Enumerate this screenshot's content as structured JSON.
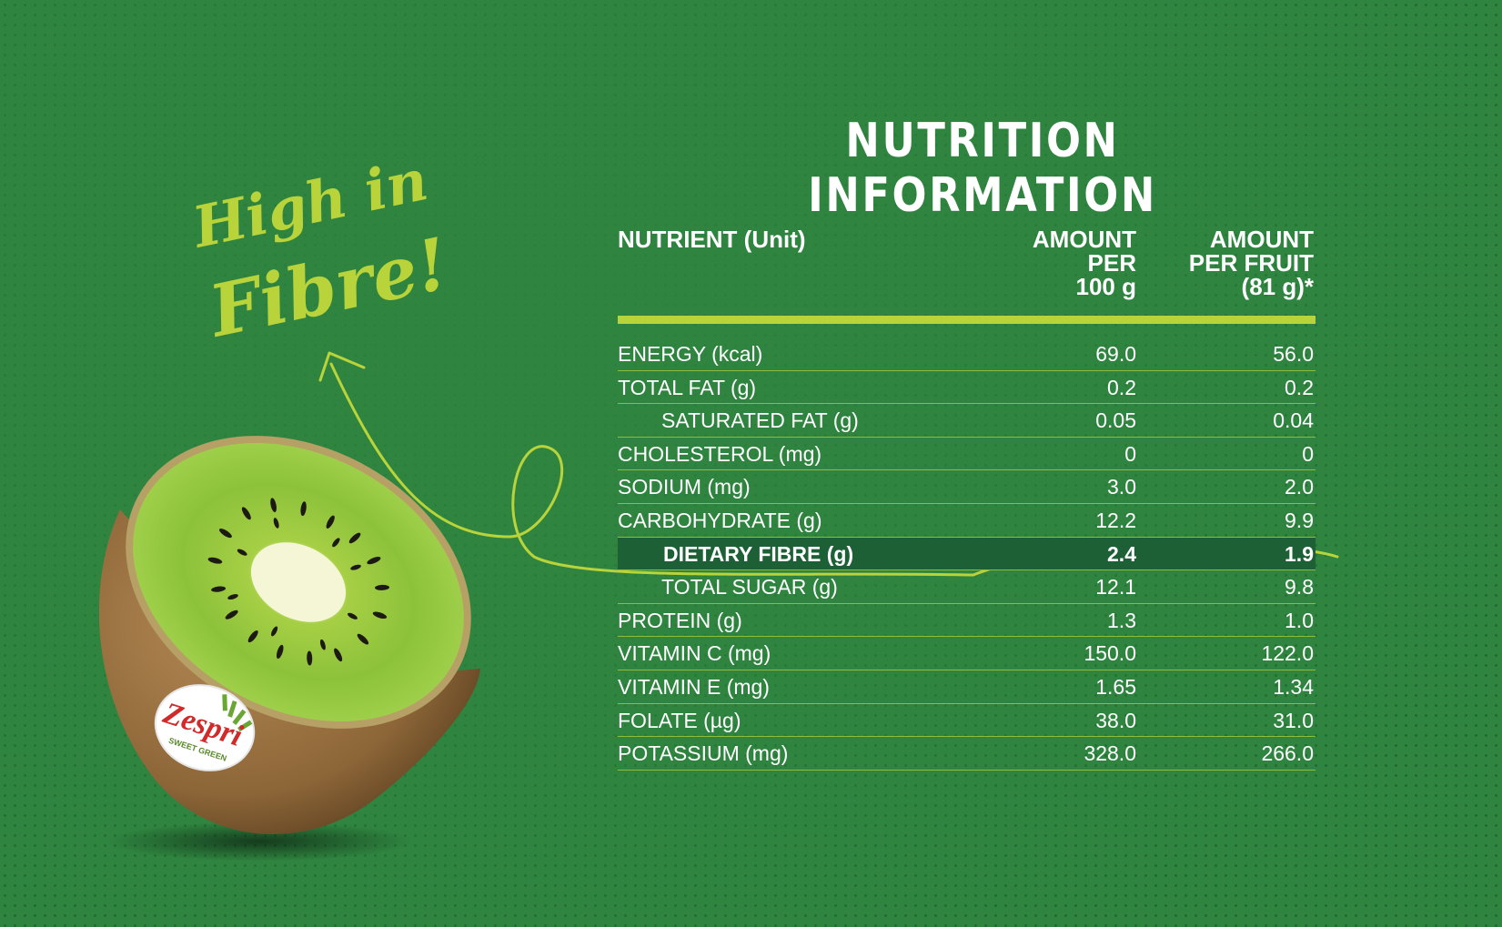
{
  "title": "NUTRITION INFORMATION",
  "callout": {
    "line1": "High in",
    "line2": "Fibre!"
  },
  "logo": {
    "brand": "Zespri",
    "sub": "SWEET GREEN"
  },
  "colors": {
    "background": "#2f8540",
    "accent": "#b9d43a",
    "highlight_row": "#1d6035",
    "text": "#ffffff"
  },
  "table": {
    "headers": {
      "nutrient": "NUTRIENT (Unit)",
      "per100": [
        "AMOUNT",
        "PER",
        "100 g"
      ],
      "perFruit": [
        "AMOUNT",
        "PER FRUIT",
        "(81 g)*"
      ]
    },
    "rows": [
      {
        "name": "ENERGY (kcal)",
        "per100": "69.0",
        "perFruit": "56.0"
      },
      {
        "name": "TOTAL FAT (g)",
        "per100": "0.2",
        "perFruit": "0.2"
      },
      {
        "name": "SATURATED FAT (g)",
        "per100": "0.05",
        "perFruit": "0.04"
      },
      {
        "name": "CHOLESTEROL (mg)",
        "per100": "0",
        "perFruit": "0"
      },
      {
        "name": "SODIUM (mg)",
        "per100": "3.0",
        "perFruit": "2.0"
      },
      {
        "name": "CARBOHYDRATE (g)",
        "per100": "12.2",
        "perFruit": "9.9"
      },
      {
        "name": "DIETARY FIBRE (g)",
        "per100": "2.4",
        "perFruit": "1.9"
      },
      {
        "name": "TOTAL SUGAR (g)",
        "per100": "12.1",
        "perFruit": "9.8"
      },
      {
        "name": "PROTEIN (g)",
        "per100": "1.3",
        "perFruit": "1.0"
      },
      {
        "name": "VITAMIN C (mg)",
        "per100": "150.0",
        "perFruit": "122.0"
      },
      {
        "name": "VITAMIN E (mg)",
        "per100": "1.65",
        "perFruit": "1.34"
      },
      {
        "name": "FOLATE (µg)",
        "per100": "38.0",
        "perFruit": "31.0"
      },
      {
        "name": "POTASSIUM (mg)",
        "per100": "328.0",
        "perFruit": "266.0"
      }
    ]
  }
}
